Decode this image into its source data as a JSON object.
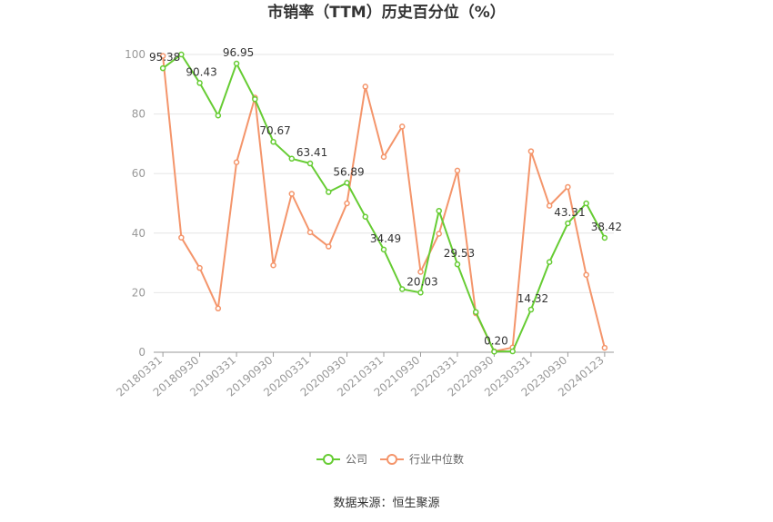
{
  "chart_data": {
    "type": "line",
    "title": "市销率（TTM）历史百分位（%）",
    "xlabel": "",
    "ylabel": "",
    "ylim": [
      0,
      100
    ],
    "yticks": [
      0,
      20,
      40,
      60,
      80,
      100
    ],
    "grid": true,
    "legend_position": "bottom",
    "x_tick_labels": [
      "20180331",
      "20180930",
      "20190331",
      "20190930",
      "20200331",
      "20200930",
      "20210331",
      "20210930",
      "20220331",
      "20220930",
      "20230331",
      "20230930",
      "20240123"
    ],
    "x": [
      "20180331",
      "20180630",
      "20180930",
      "20181231",
      "20190331",
      "20190630",
      "20190930",
      "20191231",
      "20200331",
      "20200630",
      "20200930",
      "20201231",
      "20210331",
      "20210630",
      "20210930",
      "20211231",
      "20220331",
      "20220630",
      "20220930",
      "20221231",
      "20230331",
      "20230630",
      "20230930",
      "20231231",
      "20240123"
    ],
    "series": [
      {
        "name": "公司",
        "color": "#66cc33",
        "values": [
          95.38,
          100.0,
          90.43,
          79.5,
          96.95,
          85.0,
          70.67,
          65.0,
          63.41,
          53.8,
          56.89,
          45.5,
          34.49,
          21.2,
          20.03,
          47.5,
          29.53,
          13.5,
          0.2,
          0.3,
          14.32,
          30.3,
          43.31,
          50.0,
          38.42
        ]
      },
      {
        "name": "行业中位数",
        "color": "#f4956b",
        "values": [
          99.5,
          38.5,
          28.3,
          14.7,
          63.8,
          85.5,
          29.2,
          53.2,
          40.3,
          35.5,
          50.0,
          89.2,
          65.6,
          75.8,
          27.0,
          39.8,
          61.0,
          13.1,
          0.3,
          1.6,
          67.5,
          49.2,
          55.5,
          26.0,
          1.5
        ]
      }
    ],
    "data_labels": [
      {
        "series": 0,
        "index": 0,
        "text": "95.38"
      },
      {
        "series": 0,
        "index": 2,
        "text": "90.43"
      },
      {
        "series": 0,
        "index": 4,
        "text": "96.95"
      },
      {
        "series": 0,
        "index": 6,
        "text": "70.67"
      },
      {
        "series": 0,
        "index": 8,
        "text": "63.41"
      },
      {
        "series": 0,
        "index": 10,
        "text": "56.89"
      },
      {
        "series": 0,
        "index": 12,
        "text": "34.49"
      },
      {
        "series": 0,
        "index": 14,
        "text": "20.03"
      },
      {
        "series": 0,
        "index": 16,
        "text": "29.53"
      },
      {
        "series": 0,
        "index": 18,
        "text": "0.20"
      },
      {
        "series": 0,
        "index": 20,
        "text": "14.32"
      },
      {
        "series": 0,
        "index": 22,
        "text": "43.31"
      },
      {
        "series": 0,
        "index": 24,
        "text": "38.42"
      }
    ]
  },
  "source": "数据来源：恒生聚源"
}
